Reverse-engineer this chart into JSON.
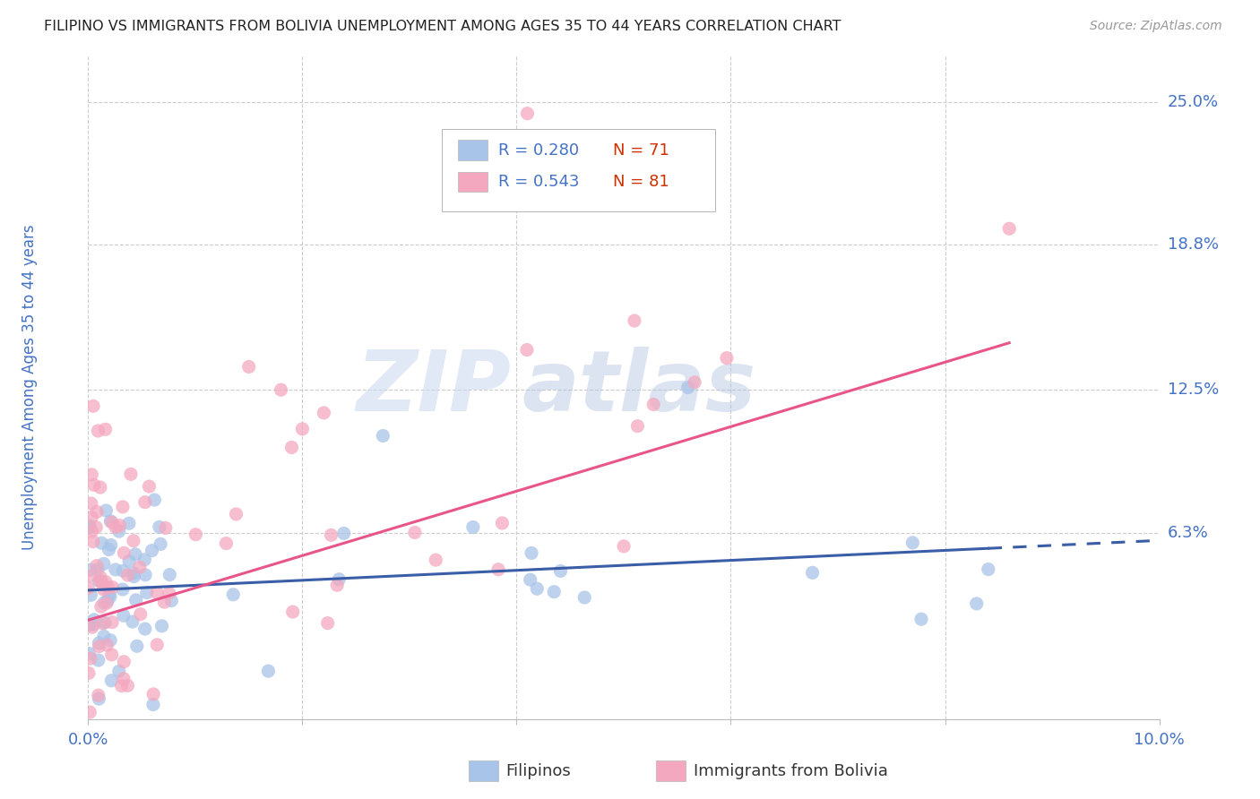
{
  "title": "FILIPINO VS IMMIGRANTS FROM BOLIVIA UNEMPLOYMENT AMONG AGES 35 TO 44 YEARS CORRELATION CHART",
  "source": "Source: ZipAtlas.com",
  "ylabel": "Unemployment Among Ages 35 to 44 years",
  "xmin": 0.0,
  "xmax": 0.1,
  "ymin": -0.018,
  "ymax": 0.27,
  "yticks": [
    0.063,
    0.125,
    0.188,
    0.25
  ],
  "ytick_labels": [
    "6.3%",
    "12.5%",
    "18.8%",
    "25.0%"
  ],
  "xticks": [
    0.0,
    0.02,
    0.04,
    0.06,
    0.08,
    0.1
  ],
  "xtick_labels": [
    "0.0%",
    "",
    "",
    "",
    "",
    "10.0%"
  ],
  "filipino_R": 0.28,
  "filipino_N": 71,
  "bolivia_R": 0.543,
  "bolivia_N": 81,
  "filipino_color": "#a8c4e8",
  "bolivia_color": "#f4a8bf",
  "filipino_line_color": "#3a5da8",
  "bolivia_line_color": "#e8558a",
  "watermark_zip": "ZIP",
  "watermark_atlas": "atlas",
  "background_color": "#ffffff",
  "grid_color": "#cccccc",
  "title_color": "#222222",
  "tick_label_color": "#4472c4",
  "legend_text_color_black": "#333333",
  "legend_text_color_blue": "#4472c4",
  "legend_N_color": "#cc3300"
}
